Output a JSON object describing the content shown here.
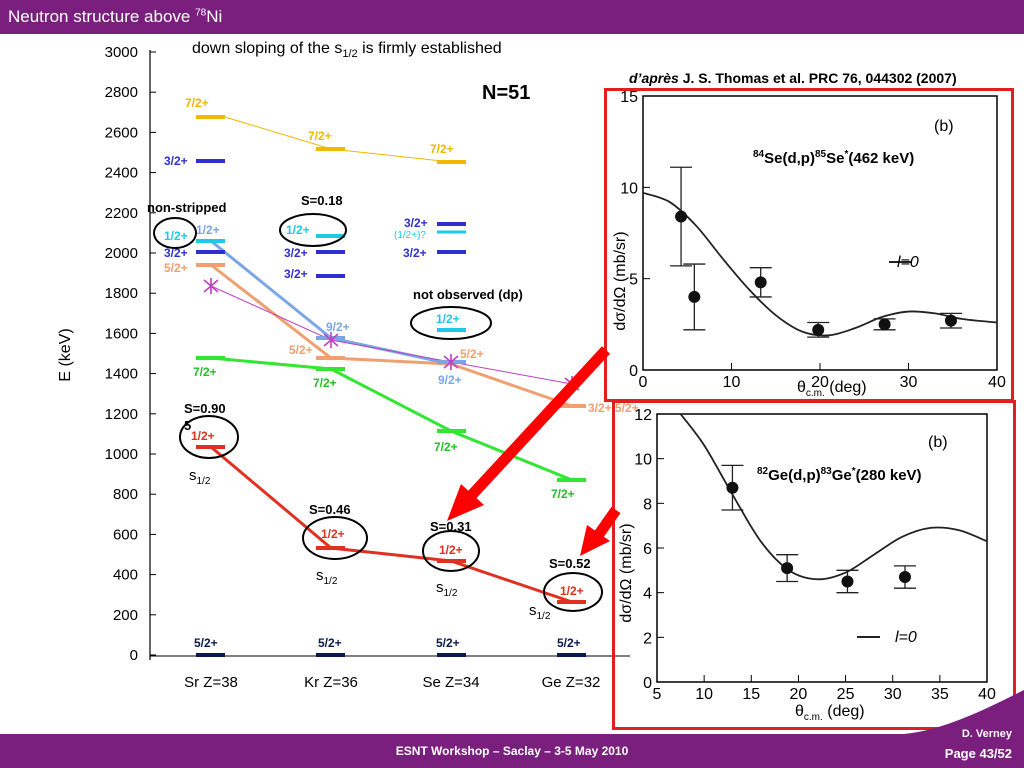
{
  "slide": {
    "title": "Neutron structure above ",
    "title_sup": "78",
    "title_tail": "Ni",
    "header": "down sloping of the s",
    "header_sub": "1/2",
    "header_tail": " is firmly established",
    "reference_em": "d’après",
    "reference": " J. S. Thomas et al. PRC 76, 044302 (2007)",
    "footer_conf": "ESNT Workshop –   Saclay –   3-5 May 2010",
    "footer_author": "D. Verney",
    "footer_page": "Page 43/52"
  },
  "level_scheme": {
    "ylabel": "E (keV)",
    "yticks": [
      "0",
      "200",
      "400",
      "600",
      "800",
      "1000",
      "1200",
      "1400",
      "1600",
      "1800",
      "2000",
      "2200",
      "2400",
      "2600",
      "2800",
      "3000"
    ],
    "nucleus_label": "N=51",
    "isotopes": [
      "Sr Z=38",
      "Kr Z=36",
      "Se Z=34",
      "Ge Z=32"
    ],
    "labels": {
      "sr_72_top": "7/2+",
      "sr_32_top": "3/2+",
      "sr_12": "1/2+",
      "sr_12b": "1/2+",
      "sr_32": "3/2+",
      "sr_52": "5/2+",
      "sr_72": "7/2+",
      "sr_12_low": "1/2+",
      "sr_52_gs": "5/2+",
      "kr_72_top": "7/2+",
      "kr_12": "1/2+",
      "kr_32a": "3/2+",
      "kr_32b": "3/2+",
      "kr_92": "9/2+",
      "kr_52": "5/2+",
      "kr_72": "7/2+",
      "kr_12_low": "1/2+",
      "kr_52_gs": "5/2+",
      "se_72_top": "7/2+",
      "se_32a": "3/2+",
      "se_12q": "(1/2+)?",
      "se_32b": "3/2+",
      "se_12_no": "1/2+",
      "se_52": "5/2+",
      "se_92": "9/2+",
      "se_72": "7/2+",
      "se_12_low": "1/2+",
      "se_52_gs": "5/2+",
      "ge_32": "3/2+,5/2+",
      "ge_72": "7/2+",
      "ge_12_low": "1/2+",
      "ge_52_gs": "5/2+"
    },
    "annotations": {
      "non_stripped": "non-stripped",
      "s_kr_top": "S=0.18",
      "not_observed": "not observed (dp)",
      "s_sr": "S=0.90",
      "s_sr_b": "5",
      "s_kr": "S=0.46",
      "s_se": "S=0.31",
      "s_ge": "S=0.52",
      "s_half": "s",
      "s_half_sub": "1/2"
    }
  },
  "plot_top": {
    "title": "(b)",
    "reaction": "84Se(d,p)85Se*(462 keV)",
    "reaction_parts": [
      "84",
      "Se(d,p)",
      "85",
      "Se",
      "*",
      "(462 keV)"
    ],
    "ylabel": "dσ/dΩ (mb/sr)",
    "xlabel": "θc.m. (deg)",
    "xlabel_parts": [
      "θ",
      "c.m.",
      "  (deg)"
    ],
    "legend": "l=0",
    "xticks": [
      "0",
      "10",
      "20",
      "30",
      "40"
    ],
    "yticks": [
      "0",
      "5",
      "10",
      "15"
    ]
  },
  "plot_bottom": {
    "title": "(b)",
    "reaction": "82Ge(d,p)83Ge*(280 keV)",
    "reaction_parts": [
      "82",
      "Ge(d,p)",
      "83",
      "Ge",
      "*",
      "(280 keV)"
    ],
    "ylabel": "dσ/dΩ (mb/sr)",
    "xlabel": "θc.m. (deg)",
    "xlabel_parts": [
      "θ",
      "c.m.",
      "  (deg)"
    ],
    "legend": "l=0",
    "xticks": [
      "5",
      "10",
      "15",
      "20",
      "25",
      "30",
      "35",
      "40"
    ],
    "yticks": [
      "0",
      "2",
      "4",
      "6",
      "8",
      "10",
      "12"
    ]
  },
  "chart_data": [
    {
      "type": "scatter",
      "title": "84Se(d,p)85Se*(462 keV)",
      "xlabel": "θc.m. (deg)",
      "ylabel": "dσ/dΩ (mb/sr)",
      "xlim": [
        0,
        40
      ],
      "ylim": [
        0,
        15
      ],
      "points": [
        {
          "x": 4.3,
          "y": 8.4,
          "err": 2.7
        },
        {
          "x": 5.8,
          "y": 4.0,
          "err": 1.8
        },
        {
          "x": 13.3,
          "y": 4.8,
          "err": 0.8
        },
        {
          "x": 19.8,
          "y": 2.2,
          "err": 0.4
        },
        {
          "x": 27.3,
          "y": 2.5,
          "err": 0.3
        },
        {
          "x": 34.8,
          "y": 2.7,
          "err": 0.4
        }
      ],
      "curve": {
        "name": "l=0",
        "x": [
          0,
          3,
          6,
          9,
          12,
          15,
          18,
          21,
          24,
          27,
          30,
          33,
          36,
          40
        ],
        "y": [
          9.7,
          9.2,
          7.9,
          6.1,
          4.4,
          3.0,
          2.1,
          1.9,
          2.3,
          2.9,
          3.2,
          3.1,
          2.8,
          2.6
        ]
      }
    },
    {
      "type": "scatter",
      "title": "82Ge(d,p)83Ge*(280 keV)",
      "xlabel": "θc.m. (deg)",
      "ylabel": "dσ/dΩ (mb/sr)",
      "xlim": [
        5,
        40
      ],
      "ylim": [
        0,
        12
      ],
      "points": [
        {
          "x": 13,
          "y": 8.7,
          "err": 1.0
        },
        {
          "x": 18.8,
          "y": 5.1,
          "err": 0.6
        },
        {
          "x": 25.2,
          "y": 4.5,
          "err": 0.5
        },
        {
          "x": 31.3,
          "y": 4.7,
          "err": 0.5
        }
      ],
      "curve": {
        "name": "l=0",
        "x": [
          7.5,
          10,
          13,
          16,
          19,
          22,
          25,
          28,
          31,
          34,
          37,
          40
        ],
        "y": [
          12,
          10.6,
          8.4,
          6.3,
          5.0,
          4.6,
          4.9,
          5.7,
          6.5,
          6.9,
          6.8,
          6.3
        ]
      }
    }
  ]
}
